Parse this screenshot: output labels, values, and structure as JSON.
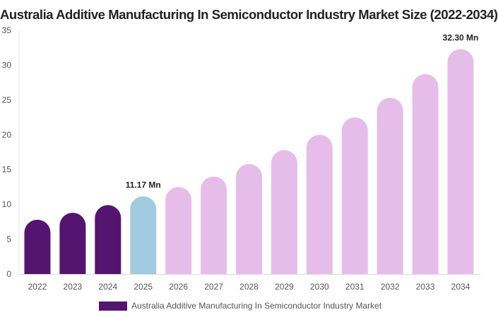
{
  "chart_data": {
    "type": "bar",
    "title": "Australia Additive Manufacturing In Semiconductor Industry Market Size (2022-2034)",
    "categories": [
      "2022",
      "2023",
      "2024",
      "2025",
      "2026",
      "2027",
      "2028",
      "2029",
      "2030",
      "2031",
      "2032",
      "2033",
      "2034"
    ],
    "series": [
      {
        "name": "Australia Additive Manufacturing In Semiconductor Industry Market",
        "values": [
          7.8,
          8.8,
          9.9,
          11.17,
          12.5,
          14.0,
          15.8,
          17.8,
          20.0,
          22.5,
          25.3,
          28.7,
          32.3
        ]
      }
    ],
    "bar_colors": [
      "#541570",
      "#541570",
      "#541570",
      "#a3cbe0",
      "#e6bde9",
      "#e6bde9",
      "#e6bde9",
      "#e6bde9",
      "#e6bde9",
      "#e6bde9",
      "#e6bde9",
      "#e6bde9",
      "#e6bde9"
    ],
    "data_labels": [
      {
        "index": 3,
        "text": "11.17 Mn"
      },
      {
        "index": 12,
        "text": "32.30 Mn"
      }
    ],
    "yticks": [
      0,
      5,
      10,
      15,
      20,
      25,
      30,
      35
    ],
    "ylim": [
      0,
      35
    ],
    "grid": false,
    "legend": {
      "position": "bottom",
      "color": "#541570"
    }
  }
}
